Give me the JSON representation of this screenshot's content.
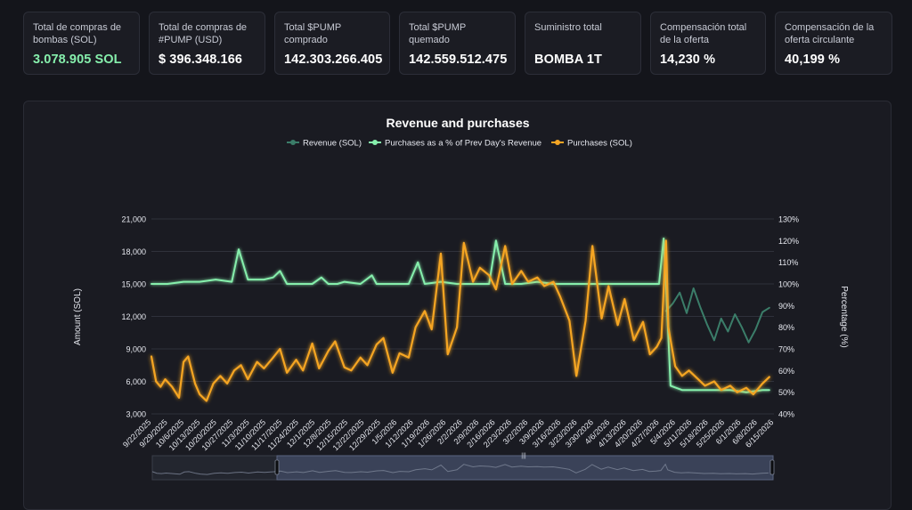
{
  "stats": [
    {
      "label": "Total de compras de bombas (SOL)",
      "value": "3.078.905 SOL"
    },
    {
      "label": "Total de compras de #PUMP (USD)",
      "value": "$ 396.348.166"
    },
    {
      "label": "Total $PUMP comprado",
      "value": "142.303.266.405"
    },
    {
      "label": "Total $PUMP quemado",
      "value": "142.559.512.475"
    },
    {
      "label": "Suministro total",
      "value": "BOMBA 1T"
    },
    {
      "label": "Compensación total de la oferta",
      "value": "14,230 %"
    },
    {
      "label": "Compensación de la oferta circulante",
      "value": "40,199 %"
    }
  ],
  "colors": {
    "revenue": "#3b7d69",
    "pct": "#86efac",
    "purchases": "#f5a524",
    "accent": "#86efac"
  },
  "chart_data": {
    "type": "line",
    "title": "Revenue and purchases",
    "ylabel": "Amount (SOL)",
    "y2label": "Percentage (%)",
    "ylim": [
      3000,
      21000
    ],
    "yticks": [
      "3,000",
      "6,000",
      "9,000",
      "12,000",
      "15,000",
      "18,000",
      "21,000"
    ],
    "y2lim": [
      40,
      130
    ],
    "y2ticks": [
      "40%",
      "50%",
      "60%",
      "70%",
      "80%",
      "90%",
      "100%",
      "110%",
      "120%",
      "130%"
    ],
    "legend_position": "top-center",
    "grid": true,
    "x_start": "2025-09-22",
    "x_end": "2026-06-20",
    "x_tick_labels": [
      "9/22/2025",
      "9/29/2025",
      "10/6/2025",
      "10/13/2025",
      "10/20/2025",
      "10/27/2025",
      "11/3/2025",
      "11/10/2025",
      "11/17/2025",
      "11/24/2025",
      "12/1/2025",
      "12/8/2025",
      "12/15/2025",
      "12/22/2025",
      "12/29/2025",
      "1/5/2026",
      "1/12/2026",
      "1/19/2026",
      "1/26/2026",
      "2/2/2026",
      "2/9/2026",
      "2/16/2026",
      "2/23/2026",
      "3/2/2026",
      "3/9/2026",
      "3/16/2026",
      "3/23/2026",
      "3/30/2026",
      "4/6/2026",
      "4/13/2026",
      "4/20/2026",
      "4/27/2026",
      "5/4/2026",
      "5/11/2026",
      "5/18/2026",
      "5/25/2026",
      "6/1/2026",
      "6/8/2026",
      "6/15/2026"
    ],
    "series": [
      {
        "name": "Revenue (SOL)",
        "axis": "left",
        "x": [
          "2026-05-04",
          "2026-05-07",
          "2026-05-10",
          "2026-05-13",
          "2026-05-16",
          "2026-05-19",
          "2026-05-22",
          "2026-05-25",
          "2026-05-28",
          "2026-05-31",
          "2026-06-03",
          "2026-06-06",
          "2026-06-09",
          "2026-06-12",
          "2026-06-15",
          "2026-06-18"
        ],
        "values": [
          12500,
          13200,
          14200,
          12300,
          14600,
          12800,
          11200,
          9800,
          11800,
          10600,
          12200,
          11000,
          9600,
          10800,
          12400,
          12800
        ]
      },
      {
        "name": "Purchases as a % of Prev Day's Revenue",
        "axis": "right",
        "x": [
          "2025-09-22",
          "2025-09-29",
          "2025-10-06",
          "2025-10-13",
          "2025-10-20",
          "2025-10-27",
          "2025-10-30",
          "2025-11-03",
          "2025-11-10",
          "2025-11-14",
          "2025-11-17",
          "2025-11-20",
          "2025-11-24",
          "2025-12-01",
          "2025-12-05",
          "2025-12-08",
          "2025-12-12",
          "2025-12-15",
          "2025-12-22",
          "2025-12-27",
          "2025-12-29",
          "2026-01-05",
          "2026-01-12",
          "2026-01-16",
          "2026-01-19",
          "2026-01-26",
          "2026-02-02",
          "2026-02-09",
          "2026-02-16",
          "2026-02-19",
          "2026-02-23",
          "2026-03-02",
          "2026-03-09",
          "2026-03-16",
          "2026-03-23",
          "2026-03-30",
          "2026-04-06",
          "2026-04-13",
          "2026-04-20",
          "2026-04-27",
          "2026-05-01",
          "2026-05-03",
          "2026-05-04",
          "2026-05-06",
          "2026-05-11",
          "2026-05-18",
          "2026-05-25",
          "2026-06-01",
          "2026-06-08",
          "2026-06-15",
          "2026-06-18"
        ],
        "values": [
          100,
          100,
          101,
          101,
          102,
          101,
          116,
          102,
          102,
          103,
          106,
          100,
          100,
          100,
          103,
          100,
          100,
          101,
          100,
          104,
          100,
          100,
          100,
          110,
          100,
          101,
          100,
          100,
          100,
          120,
          100,
          100,
          101,
          100,
          100,
          100,
          100,
          100,
          100,
          100,
          100,
          121,
          100,
          53,
          51,
          51,
          51,
          51,
          50,
          51,
          51
        ]
      },
      {
        "name": "Purchases (SOL)",
        "axis": "left",
        "x": [
          "2025-09-22",
          "2025-09-24",
          "2025-09-26",
          "2025-09-28",
          "2025-10-01",
          "2025-10-04",
          "2025-10-06",
          "2025-10-08",
          "2025-10-11",
          "2025-10-13",
          "2025-10-16",
          "2025-10-19",
          "2025-10-22",
          "2025-10-25",
          "2025-10-28",
          "2025-10-31",
          "2025-11-03",
          "2025-11-07",
          "2025-11-10",
          "2025-11-14",
          "2025-11-17",
          "2025-11-20",
          "2025-11-24",
          "2025-11-27",
          "2025-12-01",
          "2025-12-04",
          "2025-12-08",
          "2025-12-11",
          "2025-12-15",
          "2025-12-18",
          "2025-12-22",
          "2025-12-25",
          "2025-12-29",
          "2026-01-01",
          "2026-01-05",
          "2026-01-08",
          "2026-01-12",
          "2026-01-15",
          "2026-01-19",
          "2026-01-22",
          "2026-01-26",
          "2026-01-29",
          "2026-02-02",
          "2026-02-05",
          "2026-02-09",
          "2026-02-12",
          "2026-02-16",
          "2026-02-19",
          "2026-02-23",
          "2026-02-26",
          "2026-03-02",
          "2026-03-05",
          "2026-03-09",
          "2026-03-12",
          "2026-03-16",
          "2026-03-19",
          "2026-03-23",
          "2026-03-26",
          "2026-03-30",
          "2026-04-02",
          "2026-04-06",
          "2026-04-09",
          "2026-04-13",
          "2026-04-16",
          "2026-04-20",
          "2026-04-24",
          "2026-04-27",
          "2026-04-30",
          "2026-05-02",
          "2026-05-04",
          "2026-05-05",
          "2026-05-08",
          "2026-05-11",
          "2026-05-14",
          "2026-05-18",
          "2026-05-21",
          "2026-05-25",
          "2026-05-28",
          "2026-06-01",
          "2026-06-04",
          "2026-06-08",
          "2026-06-11",
          "2026-06-15",
          "2026-06-18"
        ],
        "values": [
          8300,
          6000,
          5500,
          6200,
          5500,
          4500,
          7800,
          8300,
          5800,
          4800,
          4200,
          5800,
          6500,
          5800,
          7000,
          7500,
          6200,
          7800,
          7200,
          8200,
          9000,
          6800,
          8000,
          7000,
          9500,
          7200,
          8800,
          9700,
          7300,
          7000,
          8200,
          7500,
          9400,
          10000,
          6800,
          8600,
          8200,
          11000,
          12500,
          10800,
          17800,
          8500,
          11000,
          18800,
          15200,
          16500,
          15800,
          14500,
          18500,
          15000,
          16200,
          15200,
          15600,
          14800,
          15200,
          13800,
          11600,
          6500,
          11600,
          18500,
          11800,
          14800,
          11200,
          13600,
          9800,
          11500,
          8500,
          9200,
          10000,
          19000,
          11000,
          7400,
          6500,
          7000,
          6200,
          5600,
          6000,
          5200,
          5600,
          5000,
          5400,
          4800,
          5800,
          6400
        ]
      }
    ]
  }
}
